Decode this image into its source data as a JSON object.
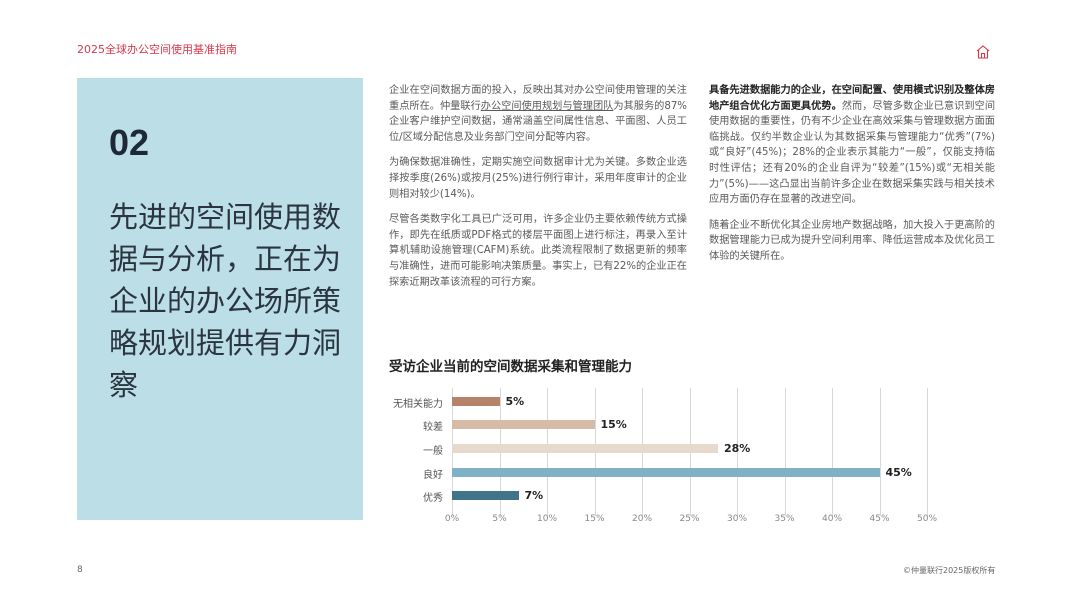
{
  "header": {
    "title": "2025全球办公空间使用基准指南",
    "icon": "home-icon",
    "accent_color": "#d9374b"
  },
  "panel": {
    "background": "#bcdee6",
    "section_number": "02",
    "section_title": "先进的空间使用数据与分析，正在为企业的办公场所策略规划提供有力洞察"
  },
  "left_column": {
    "p1_a": "企业在空间数据方面的投入，反映出其对办公空间使用管理的关注重点所在。仲量联行",
    "p1_link": "办公空间使用规划与管理团队",
    "p1_b": "为其服务的87%企业客户维护空间数据，通常涵盖空间属性信息、平面图、人员工位/区域分配信息及业务部门空间分配等内容。",
    "p2": "为确保数据准确性，定期实施空间数据审计尤为关键。多数企业选择按季度(26%)或按月(25%)进行例行审计，采用年度审计的企业则相对较少(14%)。",
    "p3": "尽管各类数字化工具已广泛可用，许多企业仍主要依赖传统方式操作，即先在纸质或PDF格式的楼层平面图上进行标注，再录入至计算机辅助设施管理(CAFM)系统。此类流程限制了数据更新的频率与准确性，进而可能影响决策质量。事实上，已有22%的企业正在探索近期改革该流程的可行方案。"
  },
  "right_column": {
    "p1_bold": "具备先进数据能力的企业，在空间配置、使用模式识别及整体房地产组合优化方面更具优势。",
    "p1_rest": "然而，尽管多数企业已意识到空间使用数据的重要性，仍有不少企业在高效采集与管理数据方面面临挑战。仅约半数企业认为其数据采集与管理能力“优秀”(7%)或“良好”(45%)；28%的企业表示其能力“一般”，仅能支持临时性评估；还有20%的企业自评为“较差”(15%)或“无相关能力”(5%)——这凸显出当前许多企业在数据采集实践与相关技术应用方面仍存在显著的改进空间。",
    "p2": "随着企业不断优化其企业房地产数据战略，加大投入于更高阶的数据管理能力已成为提升空间利用率、降低运营成本及优化员工体验的关键所在。"
  },
  "chart_data": {
    "type": "bar",
    "orientation": "horizontal",
    "title": "受访企业当前的空间数据采集和管理能力",
    "categories": [
      "无相关能力",
      "较差",
      "一般",
      "良好",
      "优秀"
    ],
    "values": [
      5,
      15,
      28,
      45,
      7
    ],
    "value_labels": [
      "5%",
      "15%",
      "28%",
      "45%",
      "7%"
    ],
    "colors": [
      "#b5836a",
      "#d6bba7",
      "#e8d9cd",
      "#7eb2c4",
      "#3f7489"
    ],
    "xlabel": "",
    "ylabel": "",
    "xlim": [
      0,
      50
    ],
    "xticks": [
      "0%",
      "5%",
      "10%",
      "15%",
      "20%",
      "25%",
      "30%",
      "35%",
      "40%",
      "45%",
      "50%"
    ],
    "grid": true,
    "legend": "none"
  },
  "footer": {
    "page_number": "8",
    "copyright": "©仲量联行2025版权所有"
  }
}
